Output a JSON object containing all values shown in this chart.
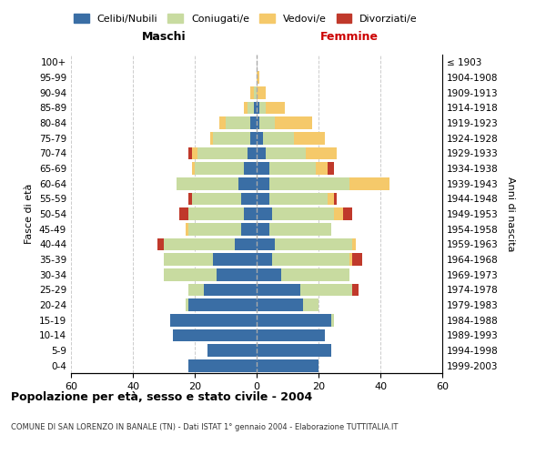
{
  "age_groups": [
    "0-4",
    "5-9",
    "10-14",
    "15-19",
    "20-24",
    "25-29",
    "30-34",
    "35-39",
    "40-44",
    "45-49",
    "50-54",
    "55-59",
    "60-64",
    "65-69",
    "70-74",
    "75-79",
    "80-84",
    "85-89",
    "90-94",
    "95-99",
    "100+"
  ],
  "birth_years": [
    "1999-2003",
    "1994-1998",
    "1989-1993",
    "1984-1988",
    "1979-1983",
    "1974-1978",
    "1969-1973",
    "1964-1968",
    "1959-1963",
    "1954-1958",
    "1949-1953",
    "1944-1948",
    "1939-1943",
    "1934-1938",
    "1929-1933",
    "1924-1928",
    "1919-1923",
    "1914-1918",
    "1909-1913",
    "1904-1908",
    "≤ 1903"
  ],
  "maschi": {
    "celibi": [
      22,
      16,
      27,
      28,
      22,
      17,
      13,
      14,
      7,
      5,
      4,
      5,
      6,
      4,
      3,
      2,
      2,
      1,
      0,
      0,
      0
    ],
    "coniugati": [
      0,
      0,
      0,
      0,
      1,
      5,
      17,
      16,
      23,
      17,
      18,
      16,
      20,
      16,
      16,
      12,
      8,
      2,
      1,
      0,
      0
    ],
    "vedovi": [
      0,
      0,
      0,
      0,
      0,
      0,
      0,
      0,
      0,
      1,
      0,
      0,
      0,
      1,
      2,
      1,
      2,
      1,
      1,
      0,
      0
    ],
    "divorziati": [
      0,
      0,
      0,
      0,
      0,
      0,
      0,
      0,
      2,
      0,
      3,
      1,
      0,
      0,
      1,
      0,
      0,
      0,
      0,
      0,
      0
    ]
  },
  "femmine": {
    "nubili": [
      20,
      24,
      22,
      24,
      15,
      14,
      8,
      5,
      6,
      4,
      5,
      4,
      4,
      4,
      3,
      2,
      1,
      1,
      0,
      0,
      0
    ],
    "coniugate": [
      0,
      0,
      0,
      1,
      5,
      17,
      22,
      25,
      25,
      20,
      20,
      19,
      26,
      15,
      13,
      10,
      5,
      2,
      0,
      0,
      0
    ],
    "vedove": [
      0,
      0,
      0,
      0,
      0,
      0,
      0,
      1,
      1,
      0,
      3,
      2,
      13,
      4,
      10,
      10,
      12,
      6,
      3,
      1,
      0
    ],
    "divorziate": [
      0,
      0,
      0,
      0,
      0,
      2,
      0,
      3,
      0,
      0,
      3,
      1,
      0,
      2,
      0,
      0,
      0,
      0,
      0,
      0,
      0
    ]
  },
  "colors": {
    "celibi_nubili": "#3a6ea5",
    "coniugati": "#c8dba0",
    "vedovi": "#f5c96a",
    "divorziati": "#c0392b"
  },
  "xlim": 60,
  "xtick_step": 20,
  "title": "Popolazione per età, sesso e stato civile - 2004",
  "subtitle": "COMUNE DI SAN LORENZO IN BANALE (TN) - Dati ISTAT 1° gennaio 2004 - Elaborazione TUTTITALIA.IT",
  "ylabel_left": "Fasce di età",
  "ylabel_right": "Anni di nascita",
  "xlabel_left": "Maschi",
  "xlabel_right": "Femmine",
  "legend_labels": [
    "Celibi/Nubili",
    "Coniugati/e",
    "Vedovi/e",
    "Divorziati/e"
  ],
  "background_color": "#ffffff",
  "grid_color": "#cccccc",
  "maschi_header_color": "#000000",
  "femmine_header_color": "#cc0000"
}
